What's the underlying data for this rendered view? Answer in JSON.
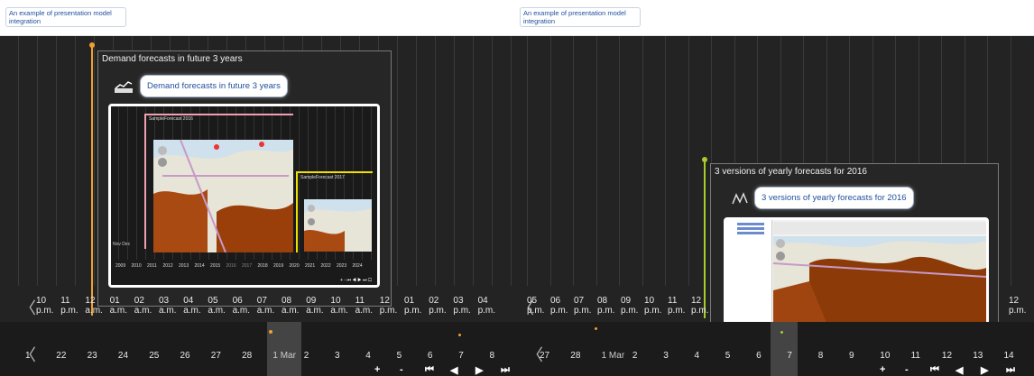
{
  "panels": [
    {
      "caption": "An example of presentation model integration",
      "story": {
        "title": "Demand forecasts in future 3 years",
        "bubble": "Demand forecasts in future 3 years",
        "inner_left_label": "SampleForecast 2016",
        "inner_right_label": "SampleForecast 2017",
        "inner_years": [
          "2009",
          "2010",
          "2011",
          "2012",
          "2013",
          "2014",
          "2015",
          "2016",
          "2017",
          "2018",
          "2019",
          "2020",
          "2021",
          "2022",
          "2023",
          "2024"
        ],
        "inner_months": [
          "Nov",
          "Dec"
        ]
      },
      "hours": [
        {
          "n": "10",
          "p": "p.m."
        },
        {
          "n": "11",
          "p": "p.m."
        },
        {
          "n": "12",
          "p": "a.m."
        },
        {
          "n": "01",
          "p": "a.m."
        },
        {
          "n": "02",
          "p": "a.m."
        },
        {
          "n": "03",
          "p": "a.m."
        },
        {
          "n": "04",
          "p": "a.m."
        },
        {
          "n": "05",
          "p": "a.m."
        },
        {
          "n": "06",
          "p": "a.m."
        },
        {
          "n": "07",
          "p": "a.m."
        },
        {
          "n": "08",
          "p": "a.m."
        },
        {
          "n": "09",
          "p": "a.m."
        },
        {
          "n": "10",
          "p": "a.m."
        },
        {
          "n": "11",
          "p": "a.m."
        },
        {
          "n": "12",
          "p": "p.m."
        },
        {
          "n": "01",
          "p": "p.m."
        },
        {
          "n": "02",
          "p": "p.m."
        },
        {
          "n": "03",
          "p": "p.m."
        },
        {
          "n": "04",
          "p": "p.m."
        }
      ],
      "days": [
        "1",
        "22",
        "23",
        "24",
        "25",
        "26",
        "27",
        "28",
        "1 Mar",
        "2",
        "3",
        "4",
        "5",
        "6",
        "7",
        "8"
      ],
      "controls": [
        "+",
        "-",
        "⏮",
        "◀",
        "▶",
        "⏭"
      ]
    },
    {
      "caption": "An example of presentation model integration",
      "story": {
        "title": "3 versions of yearly forecasts for 2016",
        "bubble": "3 versions of yearly forecasts for 2016"
      },
      "hours": [
        {
          "n": "05",
          "p": "p.m."
        },
        {
          "n": "06",
          "p": "p.m."
        },
        {
          "n": "07",
          "p": "p.m."
        },
        {
          "n": "08",
          "p": "p.m."
        },
        {
          "n": "09",
          "p": "p.m."
        },
        {
          "n": "10",
          "p": "p.m."
        },
        {
          "n": "11",
          "p": "p.m."
        },
        {
          "n": "12",
          "p": "p.m."
        }
      ],
      "days": [
        "27",
        "28",
        "1 Mar",
        "2",
        "3",
        "4",
        "5",
        "6",
        "7",
        "8",
        "9",
        "10",
        "11",
        "12",
        "13",
        "14"
      ],
      "controls": [
        "+",
        "-",
        "⏮",
        "◀",
        "▶",
        "⏭"
      ]
    }
  ],
  "colors": {
    "pin_left": "#f0a030",
    "pin_right": "#a8cc2a",
    "accent_pink": "#f0a0b0",
    "accent_yellow": "#f0e000"
  }
}
